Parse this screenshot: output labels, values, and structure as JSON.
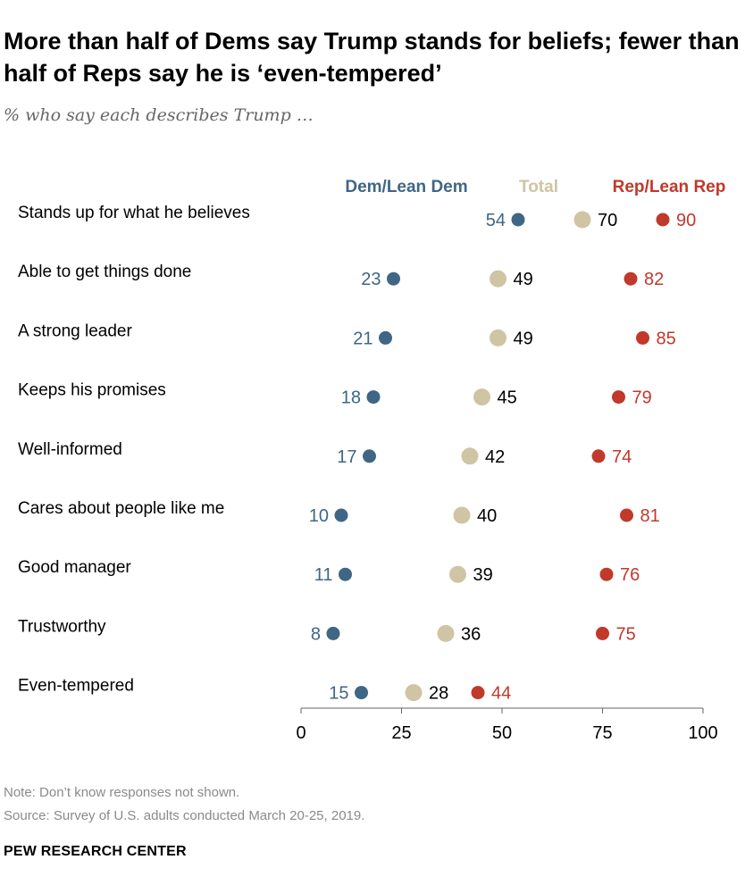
{
  "title": "More than half of Dems say Trump stands for beliefs; fewer than half of Reps say he is ‘even-tempered’",
  "subtitle": "% who say each describes Trump …",
  "note": "Note: Don’t know responses not shown.",
  "source": "Source: Survey of U.S. adults conducted March 20-25, 2019.",
  "brand": "PEW RESEARCH CENTER",
  "colors": {
    "dem": "#3f6685",
    "total": "#cfc4a3",
    "rep": "#c0392b",
    "axis": "#666666"
  },
  "chart_data": {
    "type": "scatter",
    "categories": [
      "Stands up for what he believes",
      "Able to get things done",
      "A strong leader",
      "Keeps his promises",
      "Well-informed",
      "Cares about people like me",
      "Good manager",
      "Trustworthy",
      "Even-tempered"
    ],
    "series": [
      {
        "name": "Dem/Lean Dem",
        "key": "dem",
        "values": [
          54,
          23,
          21,
          18,
          17,
          10,
          11,
          8,
          15
        ]
      },
      {
        "name": "Total",
        "key": "total",
        "values": [
          70,
          49,
          49,
          45,
          42,
          40,
          39,
          36,
          28
        ]
      },
      {
        "name": "Rep/Lean Rep",
        "key": "rep",
        "values": [
          90,
          82,
          85,
          79,
          74,
          81,
          76,
          75,
          44
        ]
      }
    ],
    "xlim": [
      0,
      100
    ],
    "xticks": [
      "0",
      "25",
      "50",
      "75",
      "100"
    ],
    "legend_position": "top"
  }
}
